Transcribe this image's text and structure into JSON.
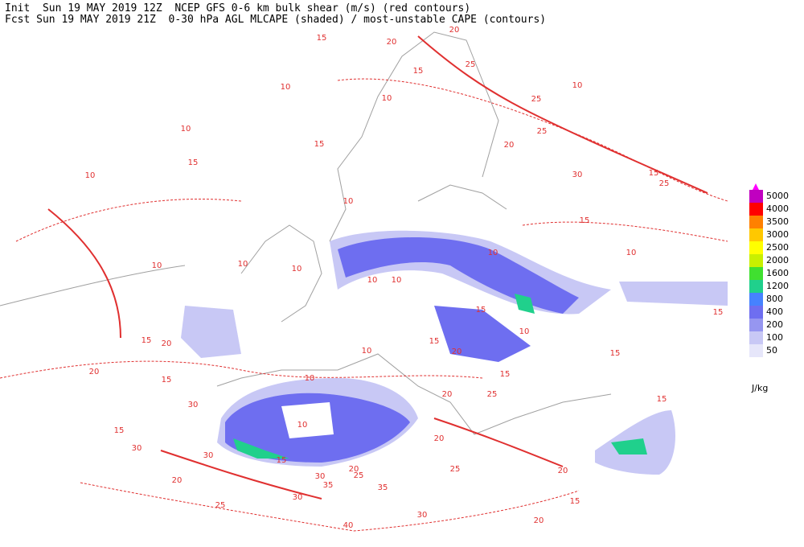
{
  "header": {
    "line1": "Init  Sun 19 MAY 2019 12Z  NCEP GFS 0-6 km bulk shear (m/s) (red contours)",
    "line2": "Fcst Sun 19 MAY 2019 21Z  0-30 hPa AGL MLCAPE (shaded) / most-unstable CAPE (contours)"
  },
  "legend": {
    "levels": [
      50,
      100,
      200,
      400,
      800,
      1200,
      1600,
      2000,
      2500,
      3000,
      3500,
      4000,
      5000
    ],
    "colors": [
      "#e6e6fa",
      "#c8c8f5",
      "#9696f0",
      "#6e6ef0",
      "#4682ff",
      "#20d08c",
      "#40e030",
      "#c8f000",
      "#ffff00",
      "#ffc800",
      "#ff8000",
      "#ff0000",
      "#c000c0"
    ],
    "top_color": "#ff00ff",
    "unit": "J/kg"
  },
  "contour_labels": [
    15,
    20,
    20,
    25,
    15,
    10,
    10,
    10,
    25,
    25,
    15,
    15,
    10,
    20,
    30,
    15,
    25,
    10,
    15,
    10,
    10,
    10,
    10,
    10,
    10,
    15,
    20,
    20,
    15,
    30,
    15,
    10,
    10,
    15,
    30,
    20,
    20,
    20,
    15,
    25,
    20,
    20,
    15,
    15,
    15,
    10,
    10,
    15,
    15,
    10,
    10,
    30,
    35,
    35,
    25,
    30,
    25,
    30,
    25,
    40,
    20,
    15,
    20,
    30
  ]
}
